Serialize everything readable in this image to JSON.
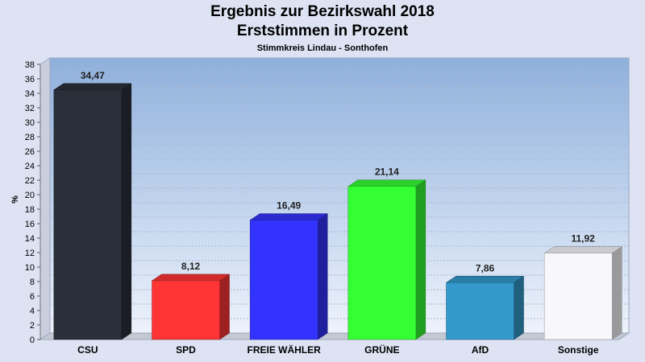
{
  "chart_data": {
    "type": "bar",
    "title": "Ergebnis zur Bezirkswahl 2018",
    "subtitle": "Erststimmen in Prozent",
    "caption": "Stimmkreis Lindau - Sonthofen",
    "ylabel": "%",
    "xlabel": "",
    "ylim": [
      0,
      38
    ],
    "ytick_step": 2,
    "grid": true,
    "categories": [
      "CSU",
      "SPD",
      "FREIE WÄHLER",
      "GRÜNE",
      "AfD",
      "Sonstige"
    ],
    "values": [
      34.47,
      8.12,
      16.49,
      21.14,
      7.86,
      11.92
    ],
    "value_labels": [
      "34,47",
      "8,12",
      "16,49",
      "21,14",
      "7,86",
      "11,92"
    ],
    "colors": [
      "#2b2f3a",
      "#ff3535",
      "#3333ff",
      "#33ff33",
      "#3399cc",
      "#f8f8fb"
    ]
  }
}
